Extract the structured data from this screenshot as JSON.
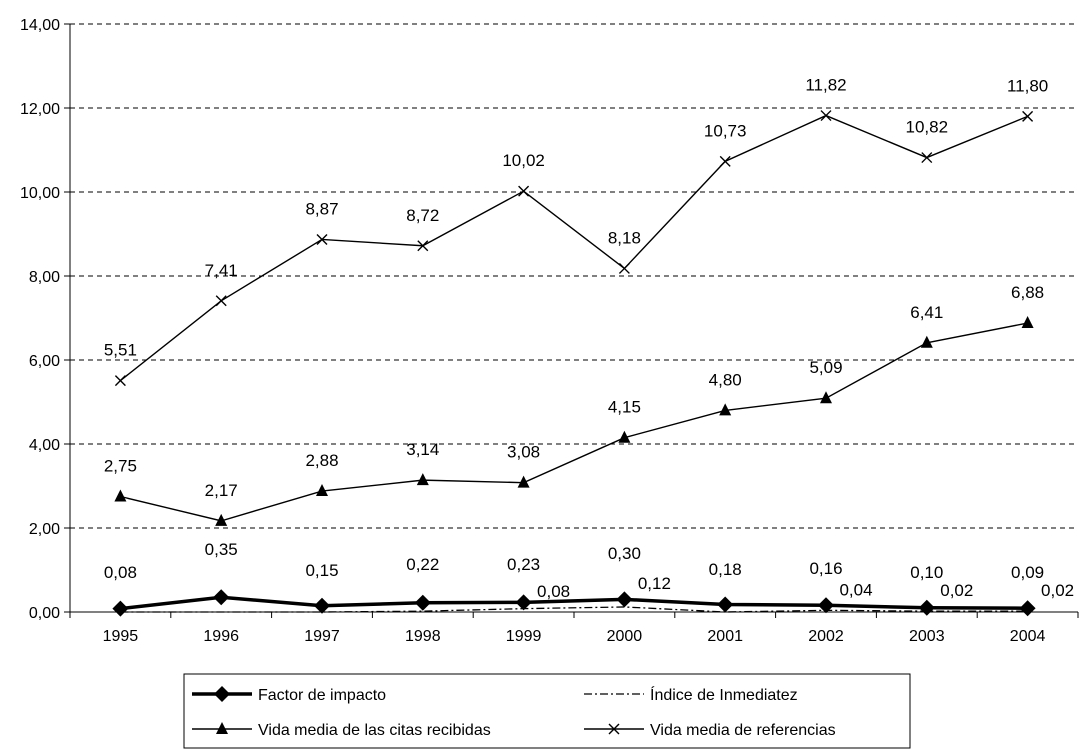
{
  "chart_data": {
    "type": "line",
    "categories": [
      "1995",
      "1996",
      "1997",
      "1998",
      "1999",
      "2000",
      "2001",
      "2002",
      "2003",
      "2004"
    ],
    "y_ticks": [
      "0,00",
      "2,00",
      "4,00",
      "6,00",
      "8,00",
      "10,00",
      "12,00",
      "14,00"
    ],
    "ylim": [
      0,
      14
    ],
    "grid": "horizontal dashed",
    "legend_position": "bottom",
    "series": [
      {
        "name": "Factor de impacto",
        "values": [
          0.08,
          0.35,
          0.15,
          0.22,
          0.23,
          0.3,
          0.18,
          0.16,
          0.1,
          0.09
        ],
        "labels": [
          "0,08",
          "0,35",
          "0,15",
          "0,22",
          "0,23",
          "0,30",
          "0,18",
          "0,16",
          "0,10",
          "0,09"
        ],
        "marker": "diamond",
        "style": "bold"
      },
      {
        "name": "Índice de Inmediatez",
        "values": [
          0.0,
          0.0,
          0.0,
          0.02,
          0.08,
          0.12,
          0.0,
          0.04,
          0.02,
          0.02
        ],
        "labels": [
          "",
          "",
          "",
          "",
          "0,08",
          "0,12",
          "",
          "0,04",
          "0,02",
          "0,02"
        ],
        "marker": "none",
        "style": "dash-dot"
      },
      {
        "name": "Vida media de las citas recibidas",
        "values": [
          2.75,
          2.17,
          2.88,
          3.14,
          3.08,
          4.15,
          4.8,
          5.09,
          6.41,
          6.88
        ],
        "labels": [
          "2,75",
          "2,17",
          "2,88",
          "3,14",
          "3,08",
          "4,15",
          "4,80",
          "5,09",
          "6,41",
          "6,88"
        ],
        "marker": "triangle",
        "style": "solid"
      },
      {
        "name": "Vida media de referencias",
        "values": [
          5.51,
          7.41,
          8.87,
          8.72,
          10.02,
          8.18,
          10.73,
          11.82,
          10.82,
          11.8
        ],
        "labels": [
          "5,51",
          "7,41",
          "8,87",
          "8,72",
          "10,02",
          "8,18",
          "10,73",
          "11,82",
          "10,82",
          "11,80"
        ],
        "marker": "x",
        "style": "solid"
      }
    ]
  }
}
